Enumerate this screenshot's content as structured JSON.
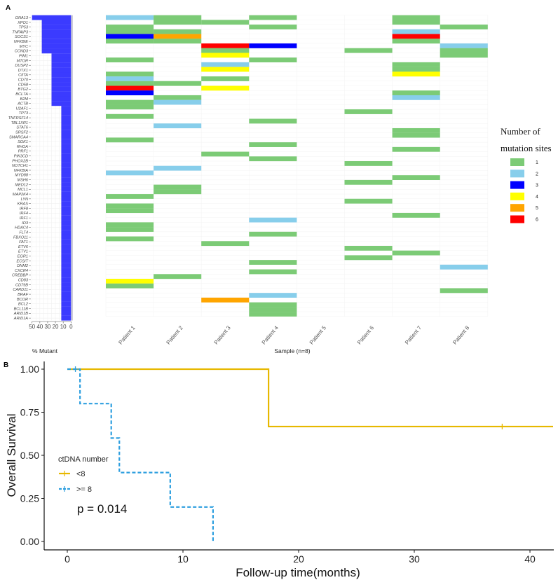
{
  "chart_data": [
    {
      "type": "heatmap",
      "panel_label": "A",
      "title": "",
      "xlabel": "Sample (n=8)",
      "bar_xlabel": "% Mutant",
      "bar_ticks": [
        "50",
        "40",
        "30",
        "20",
        "10",
        "0"
      ],
      "bar_xlim": [
        50,
        0
      ],
      "patients": [
        "Patient 1",
        "Patient 2",
        "Patient 3",
        "Patient 4",
        "Patient 5",
        "Patient 6",
        "Patient 7",
        "Patient 8"
      ],
      "genes": [
        "GNA13",
        "XPO1",
        "TP53",
        "TNFAIP3",
        "SOCS1",
        "NFKBIE",
        "MYC",
        "CCND3",
        "PIM1",
        "MTOR",
        "DUSP2",
        "DTX1",
        "CIITA",
        "CD70",
        "CD58",
        "BTG2",
        "BCL7A",
        "B2M",
        "ACTB",
        "U2AF1",
        "TP73",
        "TNFRSF14",
        "TBL1XR1",
        "STAT6",
        "SRSF2",
        "SMARCA4",
        "SGK1",
        "RHOA",
        "PRF1",
        "PIK3CD",
        "PHOX2B",
        "NOTCH1",
        "NFKBIA",
        "MYD88",
        "MSH6",
        "MED12",
        "MCL1",
        "MAP2K4",
        "LYN",
        "KRAS",
        "IRF8",
        "IRF4",
        "IRF1",
        "ID3",
        "HDAC4",
        "FLT4",
        "FBXO11",
        "FAT1",
        "ETV6",
        "ETV1",
        "EGR1",
        "ECSIT",
        "DNM2",
        "CXCR4",
        "CREBBP",
        "CD83",
        "CD79B",
        "CARD11",
        "BRAF",
        "BCOR",
        "BCL2",
        "BCL11B",
        "ARID1B",
        "ARID1A"
      ],
      "percent_mutant": [
        50,
        37.5,
        37.5,
        37.5,
        37.5,
        37.5,
        37.5,
        37.5,
        25,
        25,
        25,
        25,
        25,
        25,
        25,
        25,
        25,
        25,
        25,
        12.5,
        12.5,
        12.5,
        12.5,
        12.5,
        12.5,
        12.5,
        12.5,
        12.5,
        12.5,
        12.5,
        12.5,
        12.5,
        12.5,
        12.5,
        12.5,
        12.5,
        12.5,
        12.5,
        12.5,
        12.5,
        12.5,
        12.5,
        12.5,
        12.5,
        12.5,
        12.5,
        12.5,
        12.5,
        12.5,
        12.5,
        12.5,
        12.5,
        12.5,
        12.5,
        12.5,
        12.5,
        12.5,
        12.5,
        12.5,
        12.5,
        12.5,
        12.5,
        12.5,
        12.5
      ],
      "mutation_sites": [
        [
          2,
          1,
          0,
          1,
          0,
          0,
          1,
          0
        ],
        [
          0,
          1,
          1,
          0,
          0,
          0,
          1,
          0
        ],
        [
          1,
          0,
          0,
          1,
          0,
          0,
          0,
          1
        ],
        [
          1,
          1,
          0,
          0,
          0,
          0,
          2,
          0
        ],
        [
          3,
          5,
          0,
          0,
          0,
          0,
          6,
          0
        ],
        [
          1,
          1,
          0,
          0,
          0,
          0,
          1,
          0
        ],
        [
          0,
          0,
          6,
          3,
          0,
          0,
          0,
          2
        ],
        [
          0,
          0,
          1,
          0,
          0,
          1,
          0,
          1
        ],
        [
          0,
          0,
          4,
          0,
          0,
          0,
          0,
          1
        ],
        [
          1,
          0,
          0,
          1,
          0,
          0,
          0,
          0
        ],
        [
          0,
          0,
          2,
          0,
          0,
          0,
          1,
          0
        ],
        [
          0,
          0,
          4,
          0,
          0,
          0,
          1,
          0
        ],
        [
          1,
          0,
          0,
          0,
          0,
          0,
          4,
          0
        ],
        [
          2,
          0,
          1,
          0,
          0,
          0,
          0,
          0
        ],
        [
          1,
          1,
          0,
          0,
          0,
          0,
          0,
          0
        ],
        [
          6,
          0,
          4,
          0,
          0,
          0,
          0,
          0
        ],
        [
          3,
          0,
          0,
          0,
          0,
          0,
          1,
          0
        ],
        [
          0,
          1,
          0,
          0,
          0,
          0,
          2,
          0
        ],
        [
          1,
          2,
          0,
          0,
          0,
          0,
          0,
          0
        ],
        [
          1,
          0,
          0,
          0,
          0,
          0,
          0,
          0
        ],
        [
          0,
          0,
          0,
          0,
          0,
          1,
          0,
          0
        ],
        [
          1,
          0,
          0,
          0,
          0,
          0,
          0,
          0
        ],
        [
          0,
          0,
          0,
          1,
          0,
          0,
          0,
          0
        ],
        [
          0,
          2,
          0,
          0,
          0,
          0,
          0,
          0
        ],
        [
          0,
          0,
          0,
          0,
          0,
          0,
          1,
          0
        ],
        [
          0,
          0,
          0,
          0,
          0,
          0,
          1,
          0
        ],
        [
          1,
          0,
          0,
          0,
          0,
          0,
          0,
          0
        ],
        [
          0,
          0,
          0,
          1,
          0,
          0,
          0,
          0
        ],
        [
          0,
          0,
          0,
          0,
          0,
          0,
          1,
          0
        ],
        [
          0,
          0,
          1,
          0,
          0,
          0,
          0,
          0
        ],
        [
          0,
          0,
          0,
          1,
          0,
          0,
          0,
          0
        ],
        [
          0,
          0,
          0,
          0,
          0,
          1,
          0,
          0
        ],
        [
          0,
          2,
          0,
          0,
          0,
          0,
          0,
          0
        ],
        [
          2,
          0,
          0,
          0,
          0,
          0,
          0,
          0
        ],
        [
          0,
          0,
          0,
          0,
          0,
          0,
          1,
          0
        ],
        [
          0,
          0,
          0,
          0,
          0,
          1,
          0,
          0
        ],
        [
          0,
          1,
          0,
          0,
          0,
          0,
          0,
          0
        ],
        [
          0,
          1,
          0,
          0,
          0,
          0,
          0,
          0
        ],
        [
          1,
          0,
          0,
          0,
          0,
          0,
          0,
          0
        ],
        [
          0,
          0,
          0,
          0,
          0,
          1,
          0,
          0
        ],
        [
          1,
          0,
          0,
          0,
          0,
          0,
          0,
          0
        ],
        [
          1,
          0,
          0,
          0,
          0,
          0,
          0,
          0
        ],
        [
          0,
          0,
          0,
          0,
          0,
          0,
          1,
          0
        ],
        [
          0,
          0,
          0,
          2,
          0,
          0,
          0,
          0
        ],
        [
          1,
          0,
          0,
          0,
          0,
          0,
          0,
          0
        ],
        [
          1,
          0,
          0,
          0,
          0,
          0,
          0,
          0
        ],
        [
          0,
          0,
          0,
          1,
          0,
          0,
          0,
          0
        ],
        [
          1,
          0,
          0,
          0,
          0,
          0,
          0,
          0
        ],
        [
          0,
          0,
          1,
          0,
          0,
          0,
          0,
          0
        ],
        [
          0,
          0,
          0,
          0,
          0,
          1,
          0,
          0
        ],
        [
          0,
          0,
          0,
          0,
          0,
          0,
          1,
          0
        ],
        [
          0,
          0,
          0,
          0,
          0,
          1,
          0,
          0
        ],
        [
          0,
          0,
          0,
          1,
          0,
          0,
          0,
          0
        ],
        [
          0,
          0,
          0,
          0,
          0,
          0,
          0,
          2
        ],
        [
          0,
          0,
          0,
          1,
          0,
          0,
          0,
          0
        ],
        [
          0,
          1,
          0,
          0,
          0,
          0,
          0,
          0
        ],
        [
          4,
          0,
          0,
          0,
          0,
          0,
          0,
          0
        ],
        [
          1,
          0,
          0,
          0,
          0,
          0,
          0,
          0
        ],
        [
          0,
          0,
          0,
          0,
          0,
          0,
          0,
          1
        ],
        [
          0,
          0,
          0,
          2,
          0,
          0,
          0,
          0
        ],
        [
          0,
          0,
          5,
          0,
          0,
          0,
          0,
          0
        ],
        [
          0,
          0,
          0,
          1,
          0,
          0,
          0,
          0
        ],
        [
          0,
          0,
          0,
          1,
          0,
          0,
          0,
          0
        ],
        [
          0,
          0,
          0,
          1,
          0,
          0,
          0,
          0
        ]
      ],
      "legend": {
        "title_line1": "Number of",
        "title_line2": "mutation sites",
        "entries": [
          {
            "label": "1",
            "color": "#7ccb76"
          },
          {
            "label": "2",
            "color": "#87ceeb"
          },
          {
            "label": "3",
            "color": "#0000ff"
          },
          {
            "label": "4",
            "color": "#ffff00"
          },
          {
            "label": "5",
            "color": "#ffa500"
          },
          {
            "label": "6",
            "color": "#ff0000"
          }
        ]
      },
      "bar_color": "#3b3bff"
    },
    {
      "type": "line",
      "subtype": "kaplan-meier",
      "panel_label": "B",
      "xlabel": "Follow-up time(months)",
      "ylabel": "Overall Survival",
      "xlim": [
        -2,
        42
      ],
      "ylim": [
        0,
        1
      ],
      "xticks": [
        "0",
        "10",
        "20",
        "30",
        "40"
      ],
      "yticks": [
        "0.00",
        "0.25",
        "0.50",
        "0.75",
        "1.00"
      ],
      "legend_title": "ctDNA number",
      "pvalue": "p = 0.014",
      "series": [
        {
          "name": "<8",
          "color": "#e7b800",
          "dashed": false,
          "steps": [
            [
              0,
              1.0
            ],
            [
              17.4,
              0.667
            ],
            [
              42,
              0.667
            ]
          ],
          "censor": [
            [
              37.6,
              0.667
            ]
          ]
        },
        {
          "name": ">= 8",
          "color": "#2e9fdf",
          "dashed": true,
          "steps": [
            [
              0,
              1.0
            ],
            [
              1.1,
              0.8
            ],
            [
              3.8,
              0.6
            ],
            [
              4.5,
              0.4
            ],
            [
              8.9,
              0.2
            ],
            [
              12.6,
              0.0
            ]
          ],
          "censor": [
            [
              0.7,
              1.0
            ]
          ]
        }
      ]
    }
  ]
}
